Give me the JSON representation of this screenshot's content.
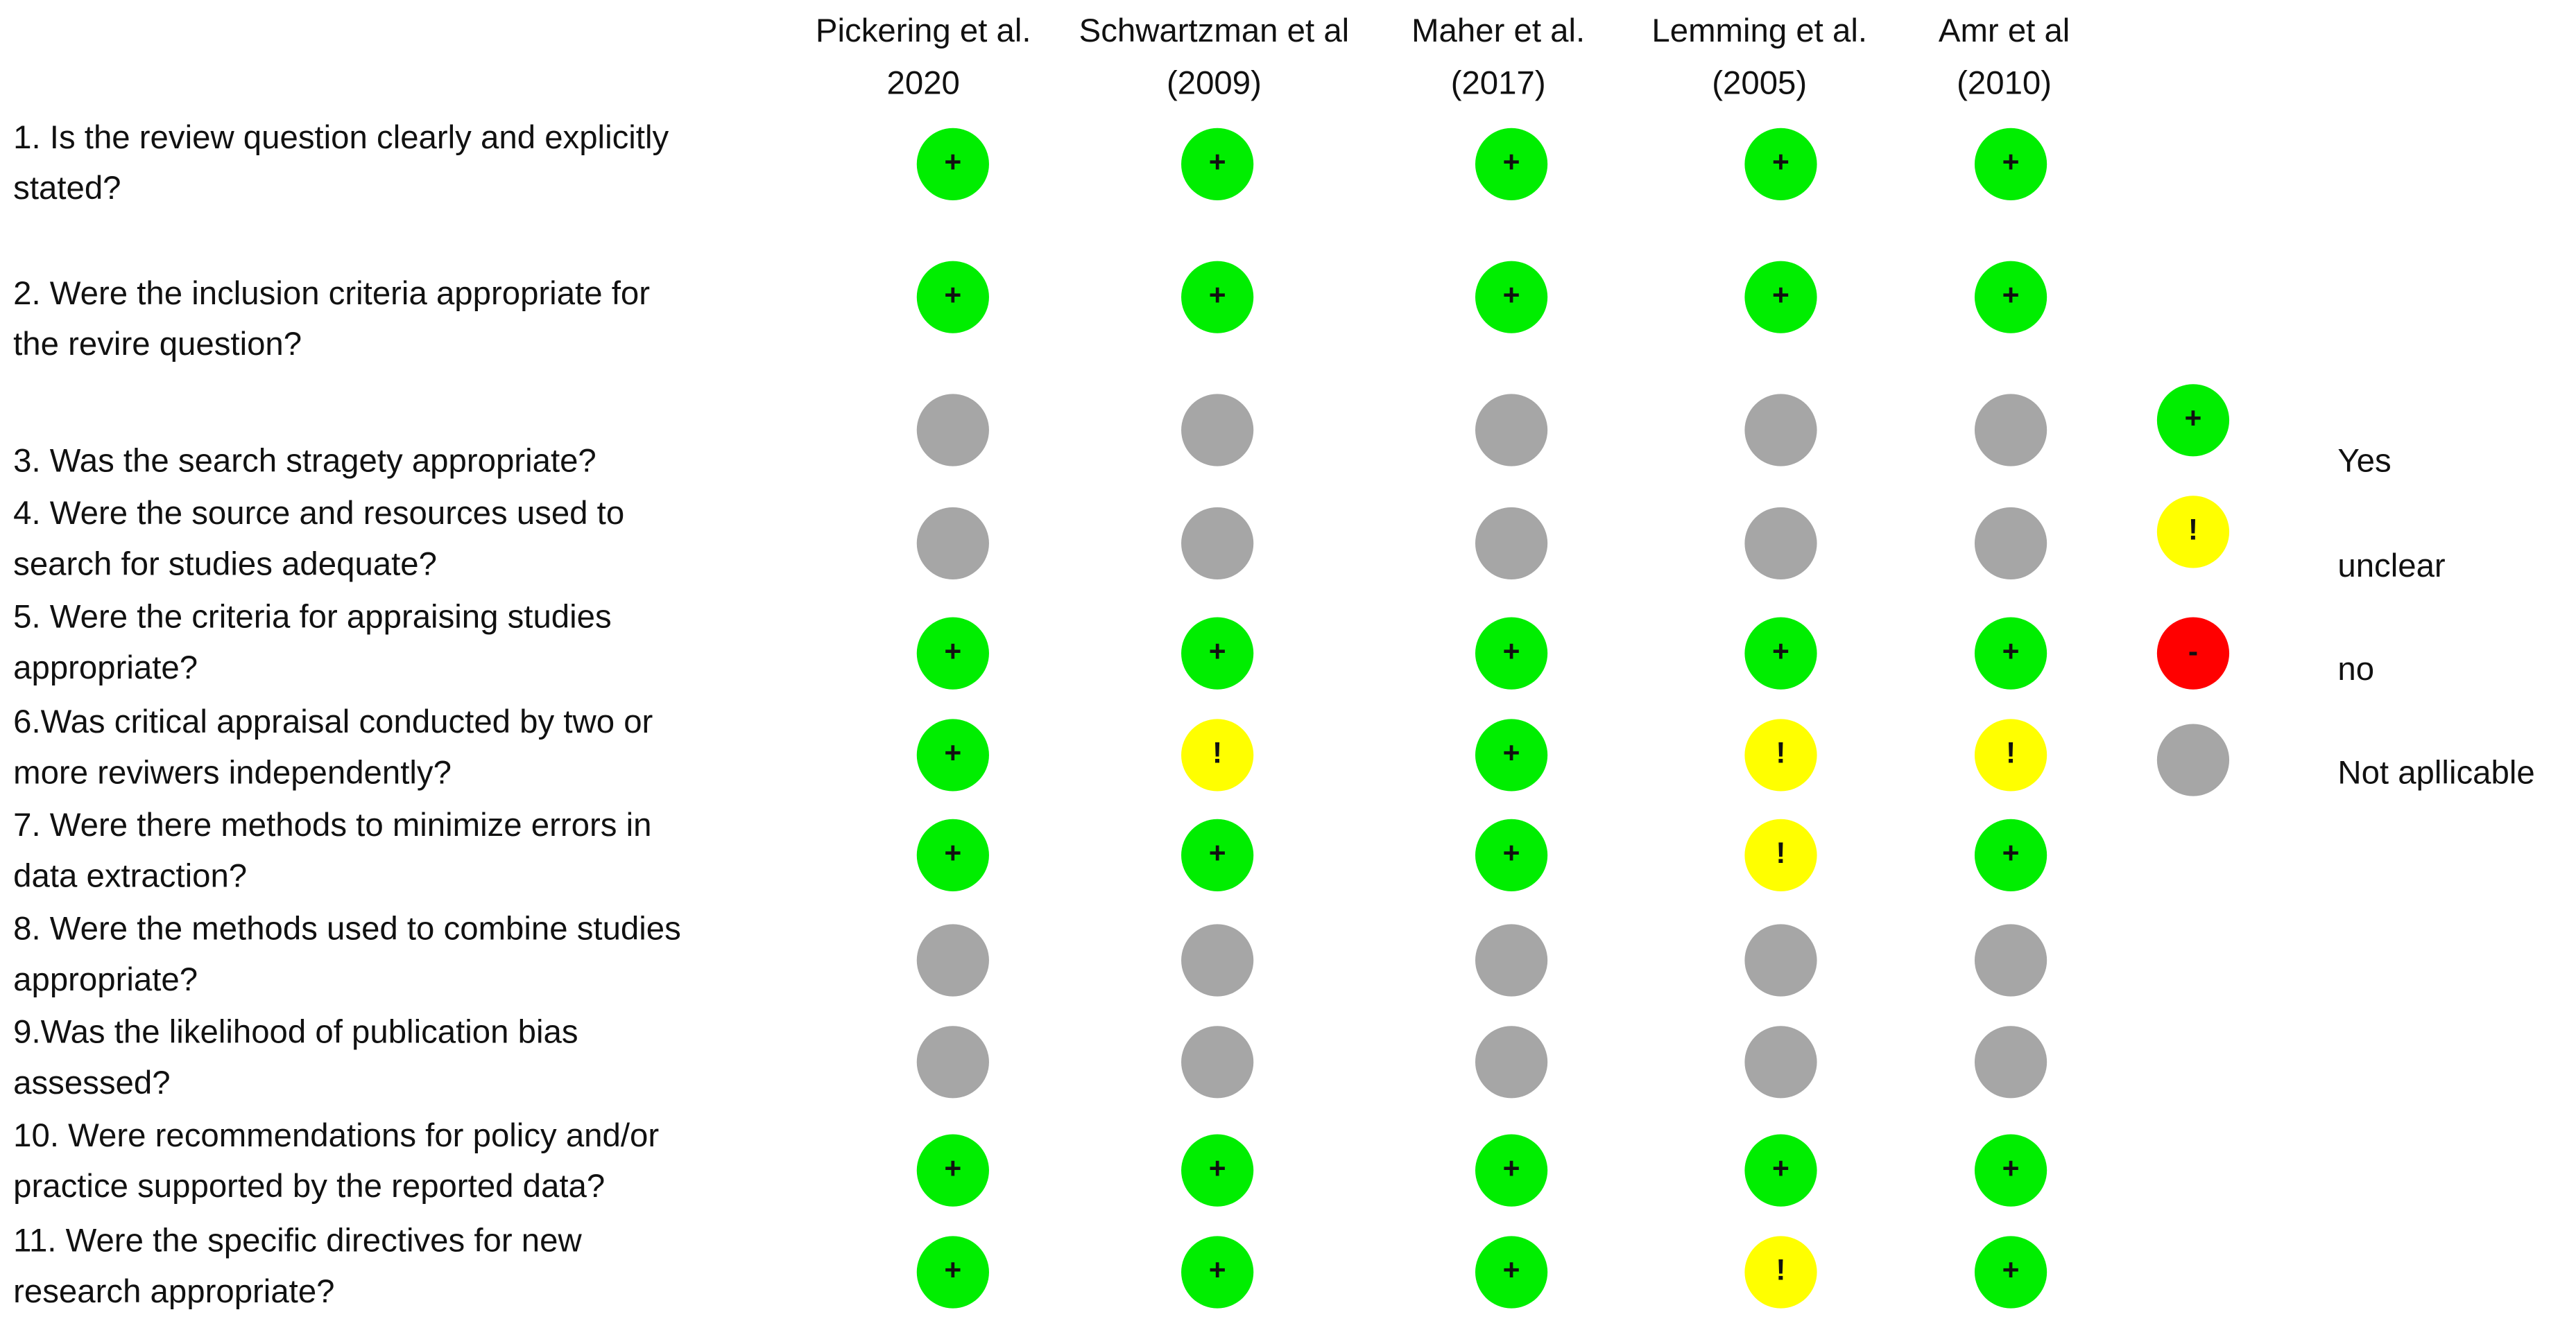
{
  "columns": [
    [
      "Pickering et al.",
      "2020"
    ],
    [
      "Schwartzman et al",
      "(2009)"
    ],
    [
      "Maher et al.",
      "(2017)"
    ],
    [
      "Lemming et al.",
      "(2005)"
    ],
    [
      "Amr et al",
      "(2010)"
    ]
  ],
  "rows": [
    {
      "question": [
        "1. Is the review question clearly and explicitly",
        "stated?"
      ],
      "ratings": [
        "+",
        "+",
        "+",
        "+",
        "+"
      ]
    },
    {
      "question": [
        "2. Were the inclusion criteria appropriate for",
        "the revire question?"
      ],
      "ratings": [
        "+",
        "+",
        "+",
        "+",
        "+"
      ]
    },
    {
      "question": [
        "3. Was the search stragety appropriate?"
      ],
      "ratings": [
        null,
        null,
        null,
        null,
        null
      ]
    },
    {
      "question": [
        "4. Were the source and resources used to",
        "search for studies adequate?"
      ],
      "ratings": [
        null,
        null,
        null,
        null,
        null
      ]
    },
    {
      "question": [
        "5. Were the criteria for appraising studies",
        "appropriate?"
      ],
      "ratings": [
        "+",
        "+",
        "+",
        "+",
        "+"
      ]
    },
    {
      "question": [
        "6.Was critical appraisal conducted by two or",
        "more reviwers independently?"
      ],
      "ratings": [
        "+",
        "!",
        "+",
        "!",
        "!"
      ]
    },
    {
      "question": [
        "7. Were there methods to minimize errors in",
        "data extraction?"
      ],
      "ratings": [
        "+",
        "+",
        "+",
        "!",
        "+"
      ]
    },
    {
      "question": [
        "8. Were the methods used to combine studies",
        "appropriate?"
      ],
      "ratings": [
        null,
        null,
        null,
        null,
        null
      ]
    },
    {
      "question": [
        "9.Was the likelihood of publication bias",
        "assessed?"
      ],
      "ratings": [
        null,
        null,
        null,
        null,
        null
      ]
    },
    {
      "question": [
        "10. Were recommendations for policy and/or",
        "practice supported by the reported data?"
      ],
      "ratings": [
        "+",
        "+",
        "+",
        "+",
        "+"
      ]
    },
    {
      "question": [
        "11. Were the specific directives for new",
        "research appropriate?"
      ],
      "ratings": [
        "+",
        "+",
        "+",
        "!",
        "+"
      ]
    }
  ],
  "legend": [
    {
      "symbol": "+",
      "label": "Yes",
      "color": "#00ee00"
    },
    {
      "symbol": "!",
      "label": "unclear",
      "color": "#ffff00"
    },
    {
      "symbol": "-",
      "label": "no",
      "color": "#ff0000"
    },
    {
      "symbol": null,
      "label": "Not apllicable",
      "color": "#a6a6a6"
    }
  ]
}
